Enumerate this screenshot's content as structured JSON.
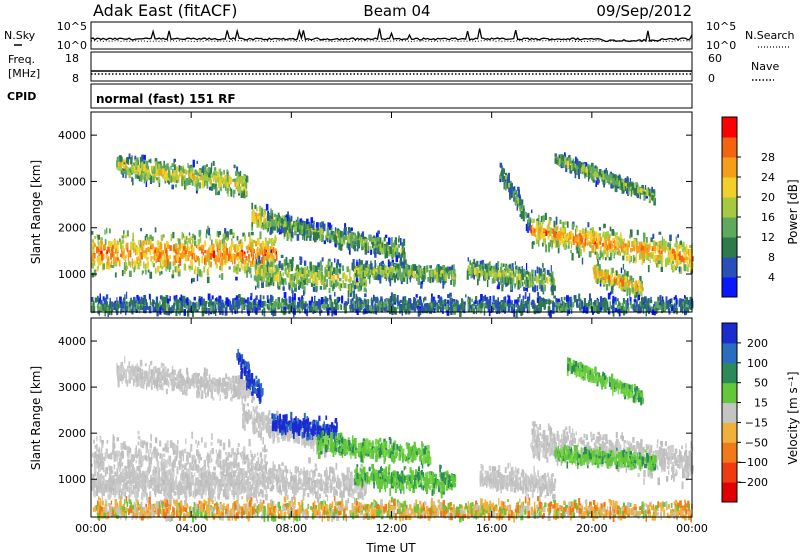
{
  "header": {
    "site": "Adak East (fitACF)",
    "beam": "Beam 04",
    "date": "09/Sep/2012"
  },
  "noise_panel": {
    "left_label": "N.Sky",
    "right_label": "N.Search",
    "left_ticks": [
      "10^5",
      "10^0"
    ],
    "right_ticks": [
      "10^5",
      "10^0"
    ]
  },
  "freq_panel": {
    "left_label_line1": "Freq.",
    "left_label_line2": "[MHz]",
    "left_ticks": [
      "18",
      "8"
    ],
    "right_label": "Nave",
    "right_ticks": [
      "60",
      "0"
    ]
  },
  "cpid_panel": {
    "label": "CPID",
    "text": "normal (fast) 151 RF"
  },
  "chart_data": [
    {
      "type": "heatmap",
      "name": "power",
      "ylabel": "Slant Range [km]",
      "ylim": [
        180,
        4500
      ],
      "y_ticks": [
        1000,
        2000,
        3000,
        4000
      ],
      "x_ticks": [
        "00:00",
        "04:00",
        "08:00",
        "12:00",
        "16:00",
        "20:00",
        "00:00"
      ],
      "xlim_hours": [
        0,
        24
      ],
      "colorbar": {
        "label": "Power [dB]",
        "ticks": [
          "4",
          "8",
          "12",
          "16",
          "20",
          "24",
          "28"
        ],
        "colors": [
          "#0a17ff",
          "#2850b8",
          "#2d7a4a",
          "#5ea95c",
          "#a6c940",
          "#f2d02c",
          "#f79e18",
          "#f2640f",
          "#ff0000"
        ]
      },
      "bands": [
        {
          "t0": 0.0,
          "t1": 7.4,
          "r0": 1450,
          "r1": 1450,
          "w0": 350,
          "w1": 350,
          "level": 0.8
        },
        {
          "t0": 1.0,
          "t1": 6.2,
          "r0": 3350,
          "r1": 2950,
          "w0": 170,
          "w1": 210,
          "level": 0.6
        },
        {
          "t0": 6.4,
          "t1": 8.0,
          "r0": 2300,
          "r1": 2000,
          "w0": 180,
          "w1": 180,
          "level": 0.7
        },
        {
          "t0": 7.0,
          "t1": 12.5,
          "r0": 2150,
          "r1": 1500,
          "w0": 130,
          "w1": 170,
          "level": 0.45
        },
        {
          "t0": 6.5,
          "t1": 11.0,
          "r0": 1050,
          "r1": 900,
          "w0": 240,
          "w1": 260,
          "level": 0.55
        },
        {
          "t0": 10.5,
          "t1": 14.5,
          "r0": 1100,
          "r1": 1000,
          "w0": 130,
          "w1": 150,
          "level": 0.5
        },
        {
          "t0": 15.0,
          "t1": 18.5,
          "r0": 1100,
          "r1": 850,
          "w0": 160,
          "w1": 200,
          "level": 0.5
        },
        {
          "t0": 17.5,
          "t1": 24.0,
          "r0": 1950,
          "r1": 1350,
          "w0": 240,
          "w1": 240,
          "level": 0.78
        },
        {
          "t0": 20.0,
          "t1": 22.0,
          "r0": 1050,
          "r1": 700,
          "w0": 150,
          "w1": 160,
          "level": 0.75
        },
        {
          "t0": 18.5,
          "t1": 22.5,
          "r0": 3500,
          "r1": 2700,
          "w0": 110,
          "w1": 110,
          "level": 0.45
        },
        {
          "t0": 16.3,
          "t1": 17.5,
          "r0": 3300,
          "r1": 2100,
          "w0": 160,
          "w1": 160,
          "level": 0.35
        },
        {
          "t0": 0.0,
          "t1": 24.0,
          "r0": 330,
          "r1": 330,
          "w0": 140,
          "w1": 140,
          "level": 0.3
        }
      ]
    },
    {
      "type": "heatmap",
      "name": "velocity",
      "ylabel": "Slant Range [km]",
      "ylim": [
        180,
        4500
      ],
      "y_ticks": [
        1000,
        2000,
        3000,
        4000
      ],
      "x_ticks": [
        "00:00",
        "04:00",
        "08:00",
        "12:00",
        "16:00",
        "20:00",
        "00:00"
      ],
      "xlabel": "Time UT",
      "xlim_hours": [
        0,
        24
      ],
      "colorbar": {
        "label": "Velocity [m s⁻¹]",
        "ticks": [
          "200",
          "100",
          "50",
          "15",
          "−15",
          "−50",
          "−100",
          "−200"
        ],
        "colors": [
          "#1a2bd0",
          "#2a6cc0",
          "#2b8b58",
          "#62c83a",
          "#c4c4c4",
          "#f0b03a",
          "#f07a18",
          "#f03a10",
          "#e00000"
        ]
      },
      "bands": [
        {
          "t0": 0.0,
          "t1": 7.0,
          "r0": 1400,
          "r1": 1300,
          "w0": 400,
          "w1": 420,
          "class": "gray"
        },
        {
          "t0": 0.0,
          "t1": 6.5,
          "r0": 900,
          "r1": 850,
          "w0": 200,
          "w1": 220,
          "class": "gray"
        },
        {
          "t0": 1.0,
          "t1": 6.5,
          "r0": 3350,
          "r1": 2950,
          "w0": 170,
          "w1": 200,
          "class": "gray"
        },
        {
          "t0": 6.0,
          "t1": 9.5,
          "r0": 2400,
          "r1": 1800,
          "w0": 200,
          "w1": 200,
          "class": "gray"
        },
        {
          "t0": 5.8,
          "t1": 6.8,
          "r0": 3650,
          "r1": 2800,
          "w0": 180,
          "w1": 200,
          "class": "blue"
        },
        {
          "t0": 7.2,
          "t1": 9.8,
          "r0": 2250,
          "r1": 2050,
          "w0": 150,
          "w1": 150,
          "class": "blue"
        },
        {
          "t0": 9.0,
          "t1": 13.5,
          "r0": 1800,
          "r1": 1550,
          "w0": 150,
          "w1": 160,
          "class": "green"
        },
        {
          "t0": 6.5,
          "t1": 11.0,
          "r0": 1000,
          "r1": 900,
          "w0": 250,
          "w1": 260,
          "class": "gray"
        },
        {
          "t0": 10.5,
          "t1": 14.5,
          "r0": 1050,
          "r1": 950,
          "w0": 150,
          "w1": 170,
          "class": "green"
        },
        {
          "t0": 15.5,
          "t1": 18.5,
          "r0": 1100,
          "r1": 850,
          "w0": 180,
          "w1": 200,
          "class": "gray"
        },
        {
          "t0": 17.5,
          "t1": 24.0,
          "r0": 1850,
          "r1": 1350,
          "w0": 280,
          "w1": 280,
          "class": "gray"
        },
        {
          "t0": 18.5,
          "t1": 22.5,
          "r0": 1550,
          "r1": 1400,
          "w0": 120,
          "w1": 120,
          "class": "green"
        },
        {
          "t0": 19.0,
          "t1": 22.0,
          "r0": 3500,
          "r1": 2800,
          "w0": 100,
          "w1": 100,
          "class": "green"
        },
        {
          "t0": 0.0,
          "t1": 24.0,
          "r0": 330,
          "r1": 330,
          "w0": 150,
          "w1": 150,
          "class": "orange"
        }
      ]
    }
  ]
}
